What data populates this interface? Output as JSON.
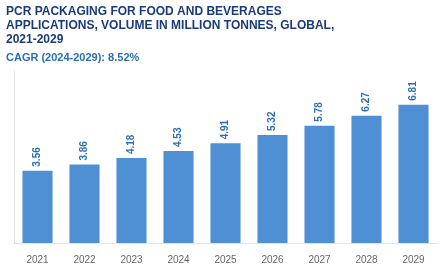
{
  "chart_data": {
    "type": "bar",
    "title": "PCR PACKAGING FOR FOOD AND BEVERAGES\nAPPLICATIONS, VOLUME IN MILLION TONNES, GLOBAL,\n2021-2029",
    "subtitle": "CAGR (2024-2029): 8.52%",
    "categories": [
      "2021",
      "2022",
      "2023",
      "2024",
      "2025",
      "2026",
      "2027",
      "2028",
      "2029"
    ],
    "values": [
      3.56,
      3.86,
      4.18,
      4.53,
      4.91,
      5.32,
      5.78,
      6.27,
      6.81
    ],
    "color": "#4F8FD4",
    "ylim": [
      0,
      8.5
    ],
    "grid": false,
    "data_labels": true,
    "tick_labels": "x"
  }
}
